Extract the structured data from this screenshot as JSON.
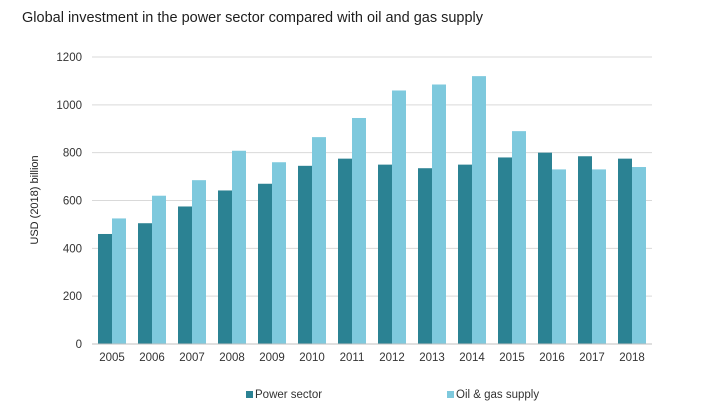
{
  "chart_data": {
    "type": "bar",
    "title": "Global investment in the power sector compared with oil and gas supply",
    "ylabel": "USD (2018) billion",
    "xlabel": "",
    "ylim": [
      0,
      1200
    ],
    "yticks": [
      0,
      200,
      400,
      600,
      800,
      1000,
      1200
    ],
    "grid": true,
    "legend_position": "bottom",
    "categories": [
      "2005",
      "2006",
      "2007",
      "2008",
      "2009",
      "2010",
      "2011",
      "2012",
      "2013",
      "2014",
      "2015",
      "2016",
      "2017",
      "2018"
    ],
    "series": [
      {
        "name": "Power sector",
        "color": "#2b8293",
        "values": [
          460,
          505,
          575,
          642,
          670,
          745,
          775,
          750,
          735,
          750,
          780,
          800,
          785,
          775
        ]
      },
      {
        "name": "Oil & gas supply",
        "color": "#7ec9dd",
        "values": [
          525,
          620,
          685,
          808,
          760,
          865,
          945,
          1060,
          1085,
          1120,
          890,
          730,
          730,
          740
        ]
      }
    ]
  }
}
